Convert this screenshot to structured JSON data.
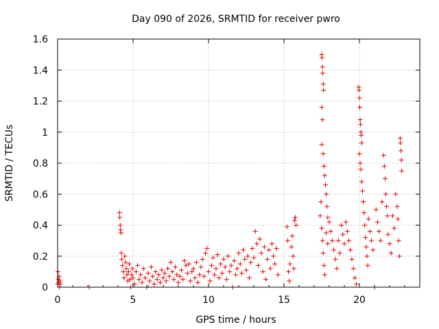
{
  "chart_data": {
    "type": "scatter",
    "title": "Day 090 of 2026, SRMTID for receiver pwro",
    "xlabel": "GPS time / hours",
    "ylabel": "SRMTID / TECUs",
    "xlim": [
      0,
      24
    ],
    "ylim": [
      0,
      1.6
    ],
    "xticks": [
      0,
      5,
      10,
      15,
      20
    ],
    "xtick_labels": [
      "0",
      "5",
      "10",
      "15",
      "20"
    ],
    "yticks": [
      0,
      0.2,
      0.4,
      0.6,
      0.8,
      1,
      1.2,
      1.4,
      1.6
    ],
    "ytick_labels": [
      "0",
      "0.2",
      "0.4",
      "0.6",
      "0.8",
      "1",
      "1.2",
      "1.4",
      "1.6"
    ],
    "grid": true,
    "marker": "+",
    "series": [
      {
        "name": "SRMTID",
        "color": "#e00000",
        "points": [
          [
            0.0,
            0.02
          ],
          [
            0.02,
            0.1
          ],
          [
            0.05,
            0.05
          ],
          [
            0.07,
            0.03
          ],
          [
            0.1,
            0.07
          ],
          [
            0.12,
            0.0
          ],
          [
            0.15,
            0.04
          ],
          [
            0.18,
            0.02
          ],
          [
            2.1,
            0.0
          ],
          [
            4.1,
            0.48
          ],
          [
            4.12,
            0.45
          ],
          [
            4.15,
            0.4
          ],
          [
            4.17,
            0.37
          ],
          [
            4.2,
            0.35
          ],
          [
            4.22,
            0.22
          ],
          [
            4.25,
            0.18
          ],
          [
            4.3,
            0.14
          ],
          [
            4.35,
            0.1
          ],
          [
            4.4,
            0.06
          ],
          [
            4.45,
            0.2
          ],
          [
            4.5,
            0.16
          ],
          [
            4.55,
            0.12
          ],
          [
            4.6,
            0.08
          ],
          [
            4.65,
            0.04
          ],
          [
            4.7,
            0.1
          ],
          [
            4.75,
            0.15
          ],
          [
            4.8,
            0.05
          ],
          [
            4.85,
            0.0
          ],
          [
            4.9,
            0.08
          ],
          [
            4.95,
            0.12
          ],
          [
            5.0,
            0.06
          ],
          [
            5.1,
            0.02
          ],
          [
            5.2,
            0.1
          ],
          [
            5.3,
            0.14
          ],
          [
            5.4,
            0.05
          ],
          [
            5.5,
            0.08
          ],
          [
            5.6,
            0.03
          ],
          [
            5.7,
            0.12
          ],
          [
            5.8,
            0.06
          ],
          [
            5.9,
            0.0
          ],
          [
            6.0,
            0.09
          ],
          [
            6.1,
            0.04
          ],
          [
            6.2,
            0.13
          ],
          [
            6.3,
            0.07
          ],
          [
            6.4,
            0.02
          ],
          [
            6.5,
            0.1
          ],
          [
            6.6,
            0.05
          ],
          [
            6.7,
            0.08
          ],
          [
            6.8,
            0.03
          ],
          [
            6.9,
            0.11
          ],
          [
            7.0,
            0.06
          ],
          [
            7.1,
            0.09
          ],
          [
            7.2,
            0.04
          ],
          [
            7.3,
            0.12
          ],
          [
            7.4,
            0.07
          ],
          [
            7.5,
            0.16
          ],
          [
            7.6,
            0.1
          ],
          [
            7.7,
            0.05
          ],
          [
            7.8,
            0.13
          ],
          [
            7.9,
            0.08
          ],
          [
            8.0,
            0.03
          ],
          [
            8.1,
            0.07
          ],
          [
            8.2,
            0.11
          ],
          [
            8.3,
            0.05
          ],
          [
            8.4,
            0.17
          ],
          [
            8.5,
            0.14
          ],
          [
            8.6,
            0.09
          ],
          [
            8.7,
            0.15
          ],
          [
            8.8,
            0.04
          ],
          [
            8.9,
            0.1
          ],
          [
            9.0,
            0.12
          ],
          [
            9.1,
            0.06
          ],
          [
            9.2,
            0.16
          ],
          [
            9.3,
            0.03
          ],
          [
            9.4,
            0.08
          ],
          [
            9.5,
            0.13
          ],
          [
            9.6,
            0.18
          ],
          [
            9.7,
            0.07
          ],
          [
            9.8,
            0.22
          ],
          [
            9.9,
            0.25
          ],
          [
            10.0,
            0.1
          ],
          [
            10.1,
            0.04
          ],
          [
            10.2,
            0.14
          ],
          [
            10.3,
            0.19
          ],
          [
            10.4,
            0.08
          ],
          [
            10.5,
            0.12
          ],
          [
            10.6,
            0.21
          ],
          [
            10.7,
            0.06
          ],
          [
            10.8,
            0.15
          ],
          [
            10.9,
            0.09
          ],
          [
            11.0,
            0.18
          ],
          [
            11.1,
            0.13
          ],
          [
            11.2,
            0.05
          ],
          [
            11.3,
            0.2
          ],
          [
            11.4,
            0.1
          ],
          [
            11.5,
            0.14
          ],
          [
            11.6,
            0.0
          ],
          [
            11.7,
            0.17
          ],
          [
            11.8,
            0.08
          ],
          [
            11.9,
            0.12
          ],
          [
            12.0,
            0.22
          ],
          [
            12.1,
            0.15
          ],
          [
            12.2,
            0.09
          ],
          [
            12.3,
            0.24
          ],
          [
            12.4,
            0.18
          ],
          [
            12.5,
            0.11
          ],
          [
            12.6,
            0.2
          ],
          [
            12.7,
            0.06
          ],
          [
            12.8,
            0.16
          ],
          [
            12.9,
            0.25
          ],
          [
            13.0,
            0.19
          ],
          [
            13.1,
            0.36
          ],
          [
            13.2,
            0.28
          ],
          [
            13.3,
            0.14
          ],
          [
            13.4,
            0.31
          ],
          [
            13.5,
            0.22
          ],
          [
            13.6,
            0.1
          ],
          [
            13.7,
            0.26
          ],
          [
            13.8,
            0.05
          ],
          [
            13.9,
            0.18
          ],
          [
            14.0,
            0.24
          ],
          [
            14.1,
            0.12
          ],
          [
            14.2,
            0.28
          ],
          [
            14.3,
            0.2
          ],
          [
            14.4,
            0.15
          ],
          [
            14.5,
            0.25
          ],
          [
            14.6,
            0.08
          ],
          [
            15.2,
            0.39
          ],
          [
            15.25,
            0.3
          ],
          [
            15.3,
            0.1
          ],
          [
            15.35,
            0.04
          ],
          [
            15.4,
            0.15
          ],
          [
            15.5,
            0.26
          ],
          [
            15.55,
            0.33
          ],
          [
            15.6,
            0.2
          ],
          [
            15.65,
            0.12
          ],
          [
            15.7,
            0.43
          ],
          [
            15.75,
            0.45
          ],
          [
            15.8,
            0.4
          ],
          [
            17.5,
            1.5
          ],
          [
            17.52,
            1.48
          ],
          [
            17.55,
            1.42
          ],
          [
            17.57,
            1.38
          ],
          [
            17.6,
            1.31
          ],
          [
            17.62,
            1.27
          ],
          [
            17.5,
            1.16
          ],
          [
            17.55,
            1.08
          ],
          [
            17.5,
            0.92
          ],
          [
            17.6,
            0.86
          ],
          [
            17.65,
            0.78
          ],
          [
            17.7,
            0.72
          ],
          [
            17.75,
            0.66
          ],
          [
            17.8,
            0.6
          ],
          [
            17.85,
            0.52
          ],
          [
            17.9,
            0.45
          ],
          [
            17.45,
            0.55
          ],
          [
            17.4,
            0.46
          ],
          [
            17.5,
            0.38
          ],
          [
            17.55,
            0.3
          ],
          [
            17.6,
            0.22
          ],
          [
            17.65,
            0.14
          ],
          [
            17.7,
            0.08
          ],
          [
            17.8,
            0.35
          ],
          [
            17.9,
            0.28
          ],
          [
            18.0,
            0.42
          ],
          [
            18.1,
            0.36
          ],
          [
            18.2,
            0.3
          ],
          [
            18.3,
            0.24
          ],
          [
            18.4,
            0.18
          ],
          [
            18.5,
            0.12
          ],
          [
            18.6,
            0.3
          ],
          [
            18.7,
            0.22
          ],
          [
            18.8,
            0.4
          ],
          [
            18.9,
            0.34
          ],
          [
            19.0,
            0.28
          ],
          [
            19.1,
            0.42
          ],
          [
            19.2,
            0.36
          ],
          [
            19.3,
            0.3
          ],
          [
            19.4,
            0.24
          ],
          [
            19.5,
            0.18
          ],
          [
            19.6,
            0.12
          ],
          [
            19.7,
            0.06
          ],
          [
            19.8,
            0.02
          ],
          [
            19.95,
            1.29
          ],
          [
            19.97,
            1.27
          ],
          [
            20.0,
            1.22
          ],
          [
            20.02,
            1.16
          ],
          [
            20.05,
            1.08
          ],
          [
            20.07,
            1.05
          ],
          [
            20.1,
            1.0
          ],
          [
            20.12,
            0.98
          ],
          [
            20.15,
            0.93
          ],
          [
            20.0,
            0.86
          ],
          [
            20.05,
            0.8
          ],
          [
            20.1,
            0.76
          ],
          [
            20.15,
            0.68
          ],
          [
            20.2,
            0.62
          ],
          [
            20.25,
            0.55
          ],
          [
            20.3,
            0.48
          ],
          [
            20.35,
            0.4
          ],
          [
            20.4,
            0.32
          ],
          [
            20.45,
            0.26
          ],
          [
            20.5,
            0.2
          ],
          [
            20.55,
            0.14
          ],
          [
            20.6,
            0.44
          ],
          [
            20.7,
            0.36
          ],
          [
            20.8,
            0.3
          ],
          [
            20.9,
            0.24
          ],
          [
            21.0,
            0.0
          ],
          [
            21.1,
            0.5
          ],
          [
            21.2,
            0.42
          ],
          [
            21.3,
            0.36
          ],
          [
            21.4,
            0.3
          ],
          [
            21.5,
            0.55
          ],
          [
            21.6,
            0.85
          ],
          [
            21.65,
            0.78
          ],
          [
            21.7,
            0.7
          ],
          [
            21.75,
            0.6
          ],
          [
            21.8,
            0.52
          ],
          [
            21.85,
            0.46
          ],
          [
            21.9,
            0.34
          ],
          [
            22.0,
            0.28
          ],
          [
            22.1,
            0.22
          ],
          [
            22.2,
            0.46
          ],
          [
            22.3,
            0.38
          ],
          [
            22.4,
            0.6
          ],
          [
            22.5,
            0.52
          ],
          [
            22.55,
            0.44
          ],
          [
            22.6,
            0.3
          ],
          [
            22.65,
            0.2
          ],
          [
            22.7,
            0.96
          ],
          [
            22.72,
            0.93
          ],
          [
            22.75,
            0.88
          ],
          [
            22.78,
            0.82
          ],
          [
            22.8,
            0.75
          ]
        ]
      }
    ]
  }
}
